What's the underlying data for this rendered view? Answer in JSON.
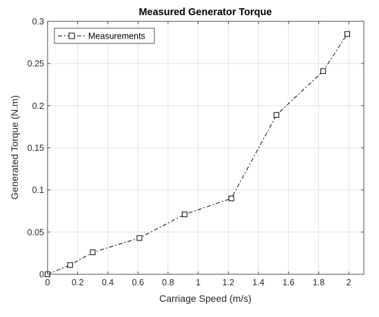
{
  "chart_data": {
    "type": "line",
    "title": "Measured Generator Torque",
    "xlabel": "Carriage Speed (m/s)",
    "ylabel": "Generated Torque (N.m)",
    "xlim": [
      0,
      2.1
    ],
    "ylim": [
      0,
      0.3
    ],
    "xticks": [
      0,
      0.2,
      0.4,
      0.6,
      0.8,
      1,
      1.2,
      1.4,
      1.6,
      1.8,
      2
    ],
    "xtick_labels": [
      "0",
      "0.2",
      "0.4",
      "0.6",
      "0.8",
      "1",
      "1.2",
      "1.4",
      "1.6",
      "1.8",
      "2"
    ],
    "yticks": [
      0,
      0.05,
      0.1,
      0.15,
      0.2,
      0.25,
      0.3
    ],
    "ytick_labels": [
      "0",
      "0.05",
      "0.1",
      "0.15",
      "0.2",
      "0.25",
      "0.3"
    ],
    "grid": true,
    "legend_position": "top-left",
    "series": [
      {
        "name": "Measurements",
        "line_style": "dash-dot",
        "marker": "square",
        "color": "#000000",
        "x": [
          0,
          0.15,
          0.3,
          0.61,
          0.91,
          1.22,
          1.52,
          1.83,
          1.99
        ],
        "y": [
          0,
          0.011,
          0.026,
          0.043,
          0.071,
          0.09,
          0.189,
          0.241,
          0.285
        ]
      }
    ]
  }
}
